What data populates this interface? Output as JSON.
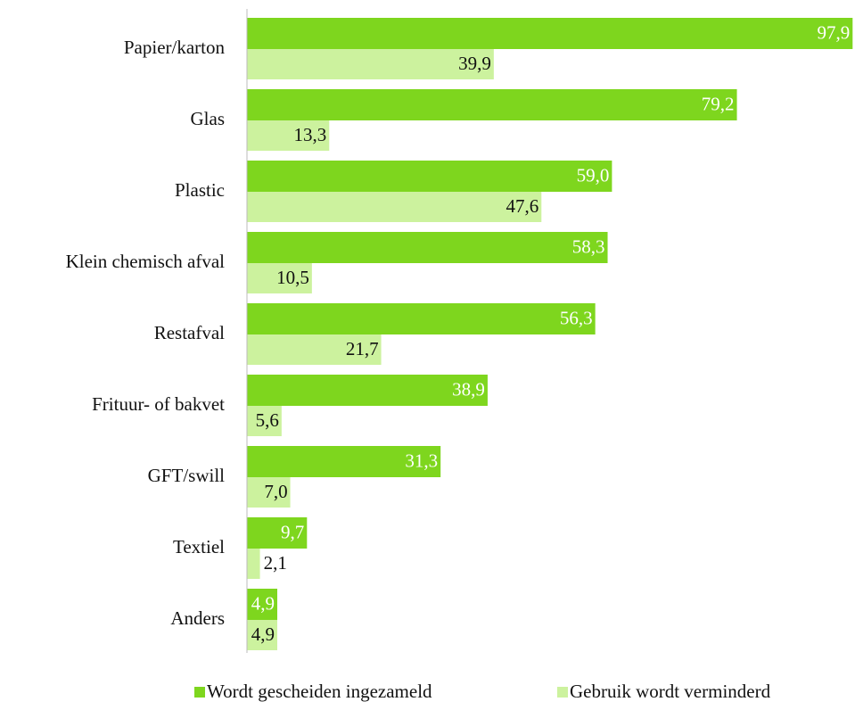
{
  "chart_data": {
    "type": "hbar",
    "categories": [
      "Papier/karton",
      "Glas",
      "Plastic",
      "Klein chemisch afval",
      "Restafval",
      "Frituur- of bakvet",
      "GFT/swill",
      "Textiel",
      "Anders"
    ],
    "series": [
      {
        "name": "Wordt gescheiden ingezameld",
        "color": "#7ed61e",
        "values": [
          97.9,
          79.2,
          59.0,
          58.3,
          56.3,
          38.9,
          31.3,
          9.7,
          4.9
        ],
        "value_labels": [
          "97,9",
          "79,2",
          "59,0",
          "58,3",
          "56,3",
          "38,9",
          "31,3",
          "9,7",
          "4,9"
        ]
      },
      {
        "name": "Gebruik wordt verminderd",
        "color": "#ccf29e",
        "values": [
          39.9,
          13.3,
          47.6,
          10.5,
          21.7,
          5.6,
          7.0,
          2.1,
          4.9
        ],
        "value_labels": [
          "39,9",
          "13,3",
          "47,6",
          "10,5",
          "21,7",
          "5,6",
          "7,0",
          "2,1",
          "4,9"
        ]
      }
    ],
    "xlim": [
      0,
      98
    ]
  }
}
